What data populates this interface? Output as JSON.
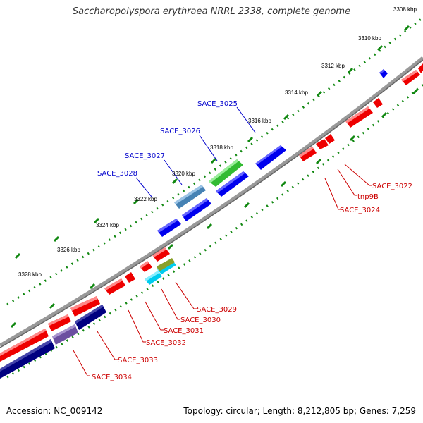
{
  "title": "Saccharopolyspora erythraea NRRL 2338, complete genome",
  "footer": {
    "accession": "Accession: NC_009142",
    "topology": "Topology: circular; Length: 8,212,805 bp; Genes: 7,259"
  },
  "kbp_labels": [
    "3308 kbp",
    "3310 kbp",
    "3312 kbp",
    "3314 kbp",
    "3316 kbp",
    "3318 kbp",
    "3320 kbp",
    "3322 kbp",
    "3324 kbp",
    "3326 kbp",
    "3328 kbp"
  ],
  "gene_labels_top": [
    "SACE_3025",
    "SACE_3026",
    "SACE_3027",
    "SACE_3028"
  ],
  "gene_labels_bottom": [
    "SACE_3022",
    "tnp9B",
    "SACE_3024",
    "SACE_3029",
    "SACE_3030",
    "SACE_3031",
    "SACE_3032",
    "SACE_3033",
    "SACE_3034"
  ],
  "colors": {
    "label_blue": "#0000cc",
    "label_red": "#cc0000",
    "dot_green": "#118811",
    "backbone": "#888888",
    "gene_blue": "#0000ee",
    "gene_red": "#ee0000",
    "gene_navy": "#000080",
    "gene_green": "#33bb33",
    "gene_steel": "#4682b4",
    "gene_purple": "#6b4fa0",
    "gene_cyan": "#00ccee",
    "gene_olive": "#8aa02a"
  }
}
